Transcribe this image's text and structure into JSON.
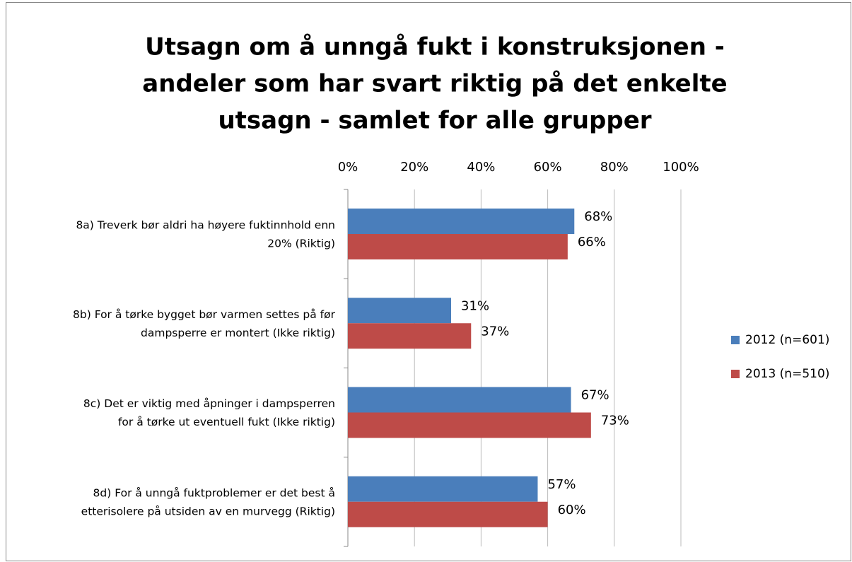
{
  "chart_data": {
    "type": "hbar",
    "title": [
      "Utsagn om å unngå fukt i konstruksjonen -",
      "andeler som har svart riktig på det enkelte",
      "utsagn - samlet for alle grupper"
    ],
    "categories": [
      [
        "8a) Treverk bør aldri ha høyere fuktinnhold enn",
        "20% (Riktig)"
      ],
      [
        "8b) For å tørke bygget bør varmen settes på før",
        "dampsperre er montert (Ikke riktig)"
      ],
      [
        "8c) Det er viktig med åpninger i dampsperren",
        "for å tørke ut eventuell fukt (Ikke riktig)"
      ],
      [
        "8d) For å unngå fuktproblemer er det best å",
        "etterisolere på utsiden av en murvegg (Riktig)"
      ]
    ],
    "series": [
      {
        "name": "2012 (n=601)",
        "color": "#4a7ebb",
        "values": [
          68,
          31,
          67,
          57
        ],
        "value_labels": [
          "68%",
          "31%",
          "67%",
          "57%"
        ]
      },
      {
        "name": "2013 (n=510)",
        "color": "#be4b48",
        "values": [
          66,
          37,
          73,
          60
        ],
        "value_labels": [
          "66%",
          "37%",
          "73%",
          "60%"
        ]
      }
    ],
    "xlim": [
      0,
      100
    ],
    "xticks": [
      {
        "value": 0,
        "label": "0%"
      },
      {
        "value": 20,
        "label": "20%"
      },
      {
        "value": 40,
        "label": "40%"
      },
      {
        "value": 60,
        "label": "60%"
      },
      {
        "value": 80,
        "label": "80%"
      },
      {
        "value": 100,
        "label": "100%"
      }
    ],
    "grid": true,
    "legend": "right"
  }
}
